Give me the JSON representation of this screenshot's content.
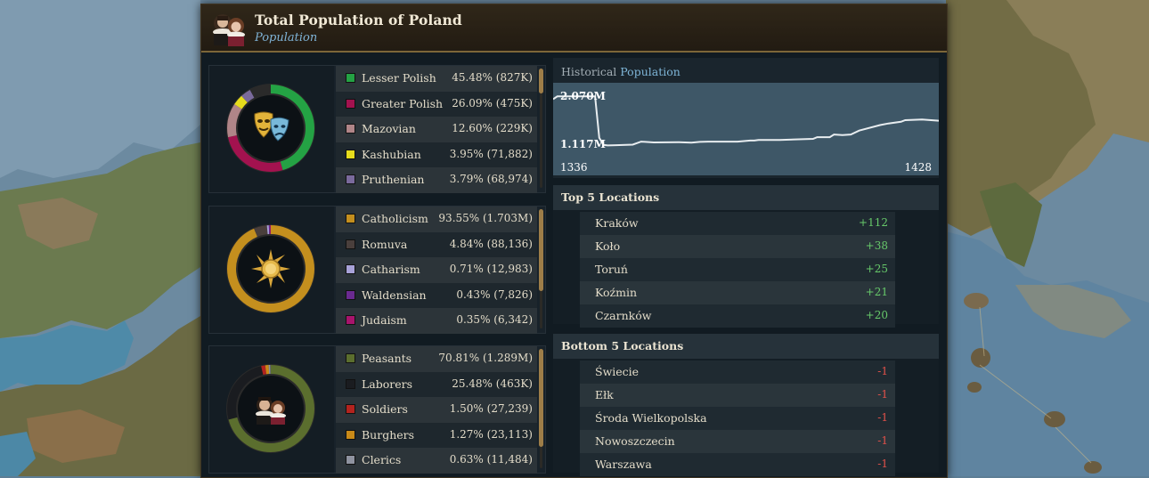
{
  "window": {
    "title": "Total Population of Poland",
    "subtitle": "Population"
  },
  "groups": [
    {
      "icon": "theatre-masks-icon",
      "rows": [
        {
          "label": "Lesser Polish",
          "value": "45.48% (827K)",
          "color": "#24a244",
          "share": 45.48
        },
        {
          "label": "Greater Polish",
          "value": "26.09% (475K)",
          "color": "#a3124f",
          "share": 26.09
        },
        {
          "label": "Mazovian",
          "value": "12.60% (229K)",
          "color": "#b08588",
          "share": 12.6
        },
        {
          "label": "Kashubian",
          "value": "3.95% (71,882)",
          "color": "#e6dc1c",
          "share": 3.95
        },
        {
          "label": "Pruthenian",
          "value": "3.79% (68,974)",
          "color": "#7a6a9c",
          "share": 3.79
        }
      ]
    },
    {
      "icon": "sun-icon",
      "rows": [
        {
          "label": "Catholicism",
          "value": "93.55% (1.703M)",
          "color": "#c48f1e",
          "share": 93.55
        },
        {
          "label": "Romuva",
          "value": "4.84% (88,136)",
          "color": "#4a3f3c",
          "share": 4.84
        },
        {
          "label": "Catharism",
          "value": "0.71% (12,983)",
          "color": "#a8a2d8",
          "share": 0.71
        },
        {
          "label": "Waldensian",
          "value": "0.43% (7,826)",
          "color": "#6a2a90",
          "share": 0.43
        },
        {
          "label": "Judaism",
          "value": "0.35% (6,342)",
          "color": "#a8146c",
          "share": 0.35
        }
      ]
    },
    {
      "icon": "nobles-portrait-icon",
      "rows": [
        {
          "label": "Peasants",
          "value": "70.81% (1.289M)",
          "color": "#5b6e2e",
          "share": 70.81
        },
        {
          "label": "Laborers",
          "value": "25.48% (463K)",
          "color": "#1a1c20",
          "share": 25.48
        },
        {
          "label": "Soldiers",
          "value": "1.50% (27,239)",
          "color": "#b3231e",
          "share": 1.5
        },
        {
          "label": "Burghers",
          "value": "1.27% (23,113)",
          "color": "#c98a18",
          "share": 1.27
        },
        {
          "label": "Clerics",
          "value": "0.63% (11,484)",
          "color": "#8f93a0",
          "share": 0.63
        }
      ]
    }
  ],
  "history": {
    "title_prefix": "Historical",
    "title_highlight": "Population",
    "y_max_label": "2.070M",
    "y_min_label": "1.117M",
    "x_start_label": "1336",
    "x_end_label": "1428"
  },
  "chart_data": {
    "type": "line",
    "title": "Historical Population",
    "xlim": [
      1336,
      1428
    ],
    "ylim": [
      1.117,
      2.07
    ],
    "series": [
      {
        "x": [
          1336,
          1337,
          1346,
          1347,
          1348,
          1349,
          1351,
          1355,
          1357,
          1358,
          1360,
          1366,
          1369,
          1371,
          1373,
          1380,
          1383,
          1384,
          1385,
          1390,
          1398,
          1399,
          1402,
          1403,
          1405,
          1407,
          1409,
          1414,
          1416,
          1419,
          1420,
          1424,
          1428
        ],
        "y": [
          1.95,
          2.0,
          2.0,
          1.25,
          1.12,
          1.11,
          1.115,
          1.125,
          1.18,
          1.175,
          1.165,
          1.17,
          1.16,
          1.175,
          1.18,
          1.18,
          1.2,
          1.2,
          1.21,
          1.21,
          1.23,
          1.26,
          1.26,
          1.31,
          1.3,
          1.31,
          1.38,
          1.48,
          1.51,
          1.54,
          1.57,
          1.58,
          1.56
        ]
      }
    ]
  },
  "top_locations": {
    "title": "Top 5 Locations",
    "rows": [
      {
        "name": "Kraków",
        "delta": "+112"
      },
      {
        "name": "Koło",
        "delta": "+38"
      },
      {
        "name": "Toruń",
        "delta": "+25"
      },
      {
        "name": "Koźmin",
        "delta": "+21"
      },
      {
        "name": "Czarnków",
        "delta": "+20"
      }
    ]
  },
  "bottom_locations": {
    "title": "Bottom 5 Locations",
    "rows": [
      {
        "name": "Świecie",
        "delta": "-1"
      },
      {
        "name": "Ełk",
        "delta": "-1"
      },
      {
        "name": "Środa Wielkopolska",
        "delta": "-1"
      },
      {
        "name": "Nowoszczecin",
        "delta": "-1"
      },
      {
        "name": "Warszawa",
        "delta": "-1"
      }
    ]
  }
}
